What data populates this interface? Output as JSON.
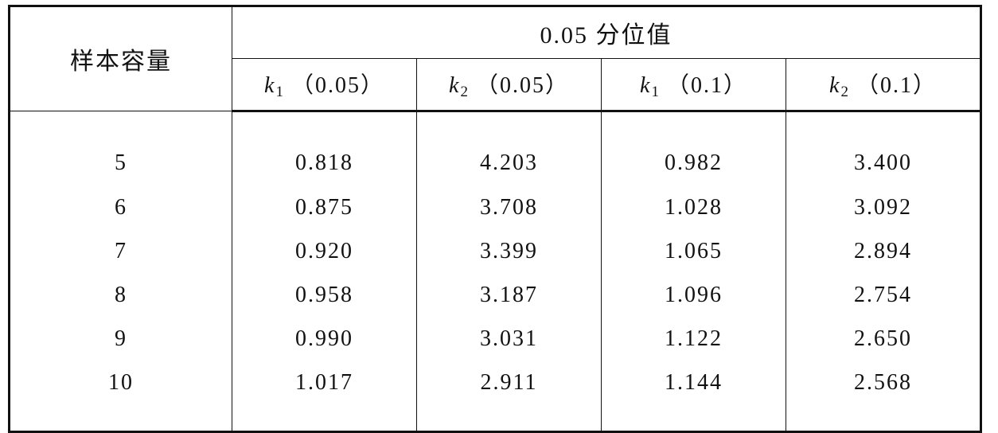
{
  "table": {
    "row_header": "样本容量",
    "group_header": "0.05 分位值",
    "columns": [
      {
        "symbol": "k",
        "sub": "1",
        "param": "（0.05）"
      },
      {
        "symbol": "k",
        "sub": "2",
        "param": "（0.05）"
      },
      {
        "symbol": "k",
        "sub": "1",
        "param": "（0.1）"
      },
      {
        "symbol": "k",
        "sub": "2",
        "param": "（0.1）"
      }
    ],
    "rows": [
      [
        "5",
        "0.818",
        "4.203",
        "0.982",
        "3.400"
      ],
      [
        "6",
        "0.875",
        "3.708",
        "1.028",
        "3.092"
      ],
      [
        "7",
        "0.920",
        "3.399",
        "1.065",
        "2.894"
      ],
      [
        "8",
        "0.958",
        "3.187",
        "1.096",
        "2.754"
      ],
      [
        "9",
        "0.990",
        "3.031",
        "1.122",
        "2.650"
      ],
      [
        "10",
        "1.017",
        "2.911",
        "1.144",
        "2.568"
      ]
    ]
  }
}
